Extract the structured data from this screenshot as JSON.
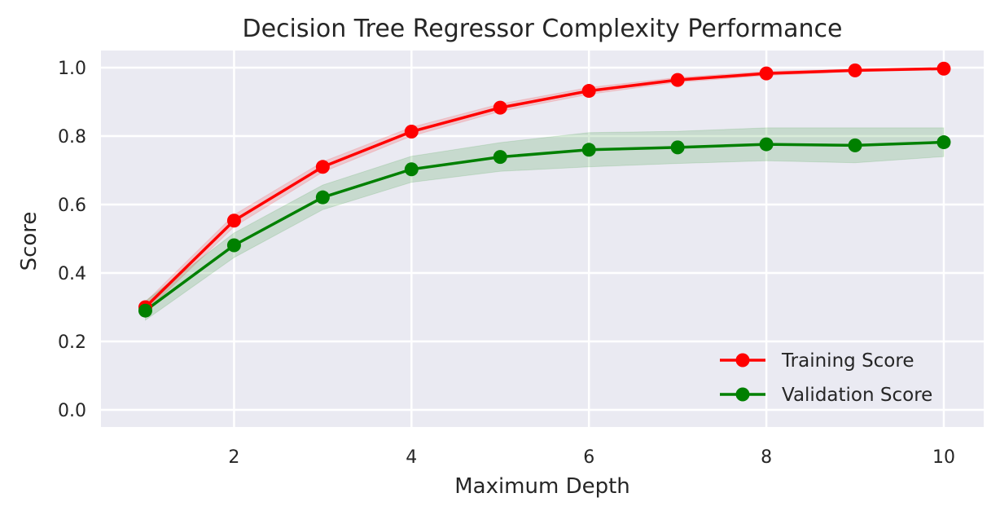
{
  "chart_data": {
    "type": "line",
    "title": "Decision Tree Regressor Complexity Performance",
    "xlabel": "Maximum Depth",
    "ylabel": "Score",
    "xlim": [
      0.5,
      10.45
    ],
    "ylim": [
      -0.05,
      1.05
    ],
    "xticks": [
      2,
      4,
      6,
      8,
      10
    ],
    "yticks": [
      0.0,
      0.2,
      0.4,
      0.6,
      0.8,
      1.0
    ],
    "x": [
      1,
      2,
      3,
      4,
      5,
      6,
      7,
      8,
      9,
      10
    ],
    "grid": true,
    "legend_position": "bottom-right",
    "background_color": "#eaeaf2",
    "series": [
      {
        "name": "Training Score",
        "color": "#ff0000",
        "values": [
          0.3,
          0.553,
          0.71,
          0.813,
          0.883,
          0.932,
          0.964,
          0.983,
          0.992,
          0.997
        ],
        "band_lower": [
          0.285,
          0.535,
          0.695,
          0.8,
          0.872,
          0.922,
          0.957,
          0.977,
          0.988,
          0.994
        ],
        "band_upper": [
          0.315,
          0.57,
          0.725,
          0.826,
          0.894,
          0.942,
          0.971,
          0.989,
          0.996,
          1.0
        ]
      },
      {
        "name": "Validation Score",
        "color": "#008000",
        "values": [
          0.29,
          0.481,
          0.621,
          0.703,
          0.739,
          0.76,
          0.767,
          0.776,
          0.773,
          0.782
        ],
        "band_lower": [
          0.262,
          0.445,
          0.585,
          0.665,
          0.697,
          0.71,
          0.72,
          0.728,
          0.722,
          0.74
        ],
        "band_upper": [
          0.318,
          0.517,
          0.657,
          0.741,
          0.781,
          0.81,
          0.814,
          0.824,
          0.824,
          0.824
        ]
      }
    ]
  }
}
